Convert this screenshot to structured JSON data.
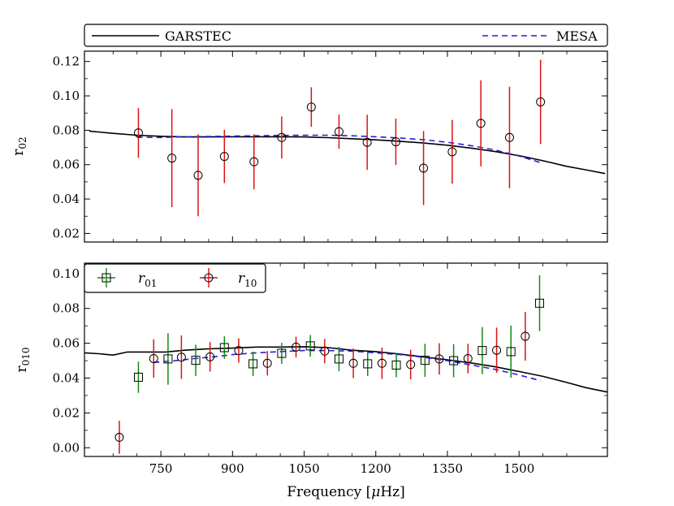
{
  "chart_data": [
    {
      "type": "line",
      "panel": "top",
      "ylabel_base": "r",
      "ylabel_sub": "02",
      "xlabel": "",
      "xlim": [
        590,
        1685
      ],
      "ylim": [
        0.015,
        0.126
      ],
      "yticks": [
        0.02,
        0.04,
        0.06,
        0.08,
        0.1,
        0.12
      ],
      "ytick_labels": [
        "0.02",
        "0.04",
        "0.06",
        "0.08",
        "0.10",
        "0.12"
      ],
      "legend": [
        {
          "label": "GARSTEC",
          "style": "solid",
          "color": "#000000"
        },
        {
          "label": "MESA",
          "style": "dashed",
          "color": "#1f1fe0"
        }
      ],
      "lines": [
        {
          "name": "GARSTEC",
          "color": "#000000",
          "dash": false,
          "x": [
            600,
            650,
            700,
            750,
            800,
            850,
            900,
            950,
            1000,
            1050,
            1100,
            1150,
            1200,
            1250,
            1300,
            1350,
            1400,
            1450,
            1500,
            1550,
            1600,
            1640,
            1680
          ],
          "y": [
            0.0795,
            0.0782,
            0.0771,
            0.0765,
            0.0761,
            0.0761,
            0.0762,
            0.0762,
            0.0762,
            0.0761,
            0.0757,
            0.0751,
            0.0744,
            0.0736,
            0.0726,
            0.0713,
            0.0696,
            0.0676,
            0.0652,
            0.0623,
            0.059,
            0.057,
            0.0548
          ]
        },
        {
          "name": "MESA",
          "color": "#1f1fe0",
          "dash": true,
          "x": [
            700,
            750,
            800,
            850,
            900,
            950,
            1000,
            1050,
            1100,
            1150,
            1200,
            1250,
            1300,
            1350,
            1400,
            1450,
            1500,
            1545
          ],
          "y": [
            0.076,
            0.0758,
            0.0762,
            0.0764,
            0.0766,
            0.0768,
            0.077,
            0.0771,
            0.0771,
            0.0768,
            0.0762,
            0.0755,
            0.0745,
            0.073,
            0.071,
            0.0685,
            0.065,
            0.0612
          ]
        }
      ],
      "series": [
        {
          "name": "r02",
          "marker": "circle",
          "color": "#dd1111",
          "x": [
            703,
            773,
            828,
            883,
            945,
            1003,
            1065,
            1123,
            1182,
            1242,
            1300,
            1360,
            1420,
            1480,
            1545
          ],
          "y": [
            0.0785,
            0.0638,
            0.0538,
            0.0648,
            0.0617,
            0.0758,
            0.0935,
            0.0792,
            0.073,
            0.0733,
            0.058,
            0.0675,
            0.084,
            0.0758,
            0.0965
          ],
          "err": [
            0.0145,
            0.0285,
            0.0238,
            0.0155,
            0.016,
            0.0122,
            0.0115,
            0.01,
            0.016,
            0.0135,
            0.0215,
            0.0185,
            0.025,
            0.0295,
            0.0245
          ]
        }
      ]
    },
    {
      "type": "line",
      "panel": "bottom",
      "ylabel_base": "r",
      "ylabel_sub": "010",
      "xlabel": "Frequency [μHz]",
      "xlabel_main": "Frequency [",
      "xlabel_mu": "μ",
      "xlabel_tail": "Hz]",
      "xlim": [
        590,
        1685
      ],
      "ylim": [
        -0.005,
        0.106
      ],
      "xticks": [
        750,
        900,
        1050,
        1200,
        1350,
        1500
      ],
      "xtick_labels": [
        "750",
        "900",
        "1050",
        "1200",
        "1350",
        "1500"
      ],
      "yticks": [
        0.0,
        0.02,
        0.04,
        0.06,
        0.08,
        0.1
      ],
      "ytick_labels": [
        "0.00",
        "0.02",
        "0.04",
        "0.06",
        "0.08",
        "0.10"
      ],
      "legend": [
        {
          "label_base": "r",
          "label_sub": "01",
          "marker": "square",
          "color": "#138a13"
        },
        {
          "label_base": "r",
          "label_sub": "10",
          "marker": "circle",
          "color": "#dd1111"
        }
      ],
      "lines": [
        {
          "name": "GARSTEC",
          "color": "#000000",
          "dash": false,
          "x": [
            590,
            620,
            650,
            680,
            720,
            760,
            800,
            850,
            900,
            950,
            1000,
            1050,
            1100,
            1150,
            1200,
            1250,
            1300,
            1350,
            1400,
            1450,
            1500,
            1550,
            1600,
            1640,
            1685
          ],
          "y": [
            0.0545,
            0.054,
            0.0532,
            0.055,
            0.055,
            0.055,
            0.056,
            0.0568,
            0.0572,
            0.0578,
            0.0578,
            0.058,
            0.0575,
            0.056,
            0.0552,
            0.0538,
            0.0522,
            0.0505,
            0.0487,
            0.0465,
            0.0438,
            0.041,
            0.0375,
            0.0345,
            0.032
          ]
        },
        {
          "name": "MESA",
          "color": "#1f1fe0",
          "dash": true,
          "x": [
            735,
            780,
            820,
            860,
            900,
            950,
            1000,
            1050,
            1100,
            1150,
            1200,
            1250,
            1300,
            1350,
            1400,
            1450,
            1500,
            1545
          ],
          "y": [
            0.049,
            0.05,
            0.0512,
            0.0522,
            0.0535,
            0.0545,
            0.0552,
            0.0558,
            0.0558,
            0.0555,
            0.0545,
            0.0535,
            0.052,
            0.05,
            0.0475,
            0.045,
            0.0418,
            0.0385
          ]
        }
      ],
      "series": [
        {
          "name": "r01",
          "marker": "square",
          "color": "#138a13",
          "x": [
            703,
            765,
            823,
            883,
            943,
            1003,
            1063,
            1123,
            1183,
            1243,
            1303,
            1363,
            1423,
            1483,
            1543
          ],
          "y": [
            0.0405,
            0.051,
            0.0502,
            0.0575,
            0.0482,
            0.0542,
            0.0585,
            0.051,
            0.0482,
            0.0475,
            0.0502,
            0.05,
            0.0558,
            0.0552,
            0.083
          ],
          "err": [
            0.009,
            0.0148,
            0.009,
            0.0065,
            0.007,
            0.006,
            0.0062,
            0.007,
            0.007,
            0.007,
            0.0095,
            0.0095,
            0.0135,
            0.015,
            0.016
          ]
        },
        {
          "name": "r10",
          "marker": "circle",
          "color": "#dd1111",
          "x": [
            663,
            735,
            793,
            853,
            913,
            973,
            1033,
            1093,
            1153,
            1213,
            1273,
            1333,
            1393,
            1453,
            1513
          ],
          "y": [
            0.006,
            0.0512,
            0.052,
            0.0522,
            0.0558,
            0.0485,
            0.0578,
            0.0555,
            0.0485,
            0.0485,
            0.0478,
            0.051,
            0.0512,
            0.056,
            0.064
          ],
          "err": [
            0.0095,
            0.011,
            0.0125,
            0.0085,
            0.007,
            0.007,
            0.006,
            0.007,
            0.0085,
            0.009,
            0.0085,
            0.009,
            0.0085,
            0.013,
            0.014
          ]
        }
      ]
    }
  ]
}
